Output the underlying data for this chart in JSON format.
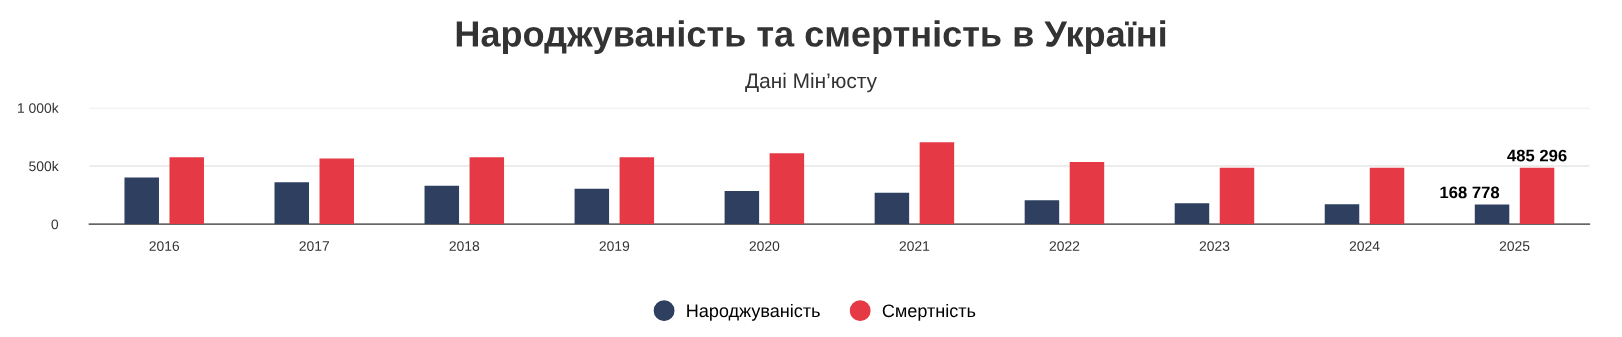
{
  "chart_data": {
    "type": "bar",
    "title": "Народжуваність та смертність в Україні",
    "subtitle": "Дані Мін’юсту",
    "categories": [
      "2016",
      "2017",
      "2018",
      "2019",
      "2020",
      "2021",
      "2022",
      "2023",
      "2024",
      "2025"
    ],
    "series": [
      {
        "name": "Народжуваність",
        "color": "#2e3f60",
        "values": [
          400000,
          360000,
          330000,
          305000,
          285000,
          270000,
          205000,
          180000,
          170000,
          168778
        ],
        "value_labels": [
          null,
          null,
          null,
          null,
          null,
          null,
          null,
          null,
          null,
          "168 778"
        ]
      },
      {
        "name": "Смертність",
        "color": "#e63946",
        "values": [
          575000,
          565000,
          575000,
          575000,
          610000,
          705000,
          535000,
          485000,
          485000,
          485296
        ],
        "value_labels": [
          null,
          null,
          null,
          null,
          null,
          null,
          null,
          null,
          null,
          "485 296"
        ]
      }
    ],
    "ylim": [
      0,
      1000000
    ],
    "yticks": [
      {
        "value": 0,
        "label": "0"
      },
      {
        "value": 500000,
        "label": "500k"
      },
      {
        "value": 1000000,
        "label": "1 000k"
      }
    ],
    "grid": "y",
    "legend": "bottom"
  }
}
